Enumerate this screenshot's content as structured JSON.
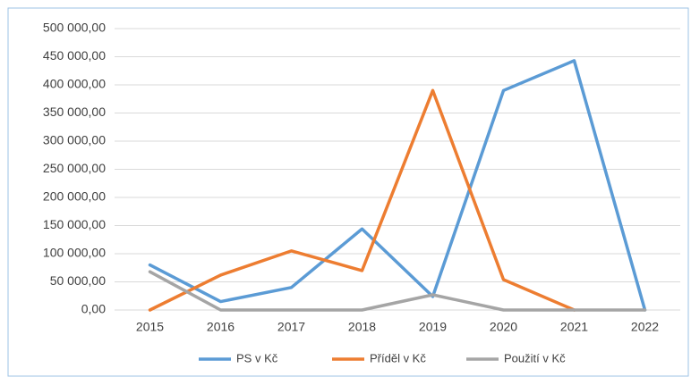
{
  "chart_data": {
    "type": "line",
    "categories": [
      "2015",
      "2016",
      "2017",
      "2018",
      "2019",
      "2020",
      "2021",
      "2022"
    ],
    "series": [
      {
        "name": "PS v Kč",
        "color": "#5b9bd5",
        "values": [
          80000,
          15000,
          40000,
          144000,
          24000,
          390000,
          443000,
          0
        ]
      },
      {
        "name": "Příděl v Kč",
        "color": "#ed7d31",
        "values": [
          0,
          62000,
          105000,
          70000,
          390000,
          54000,
          0,
          null
        ]
      },
      {
        "name": "Použití v Kč",
        "color": "#a5a5a5",
        "values": [
          68000,
          0,
          0,
          0,
          27000,
          0,
          0,
          0
        ]
      }
    ],
    "ylim": [
      0,
      500000
    ],
    "yticks": [
      {
        "value": 0,
        "label": "0,00"
      },
      {
        "value": 50000,
        "label": "50 000,00"
      },
      {
        "value": 100000,
        "label": "100 000,00"
      },
      {
        "value": 150000,
        "label": "150 000,00"
      },
      {
        "value": 200000,
        "label": "200 000,00"
      },
      {
        "value": 250000,
        "label": "250 000,00"
      },
      {
        "value": 300000,
        "label": "300 000,00"
      },
      {
        "value": 350000,
        "label": "350 000,00"
      },
      {
        "value": 400000,
        "label": "400 000,00"
      },
      {
        "value": 450000,
        "label": "450 000,00"
      },
      {
        "value": 500000,
        "label": "500 000,00"
      }
    ],
    "grid": true,
    "legend": "bottom"
  }
}
